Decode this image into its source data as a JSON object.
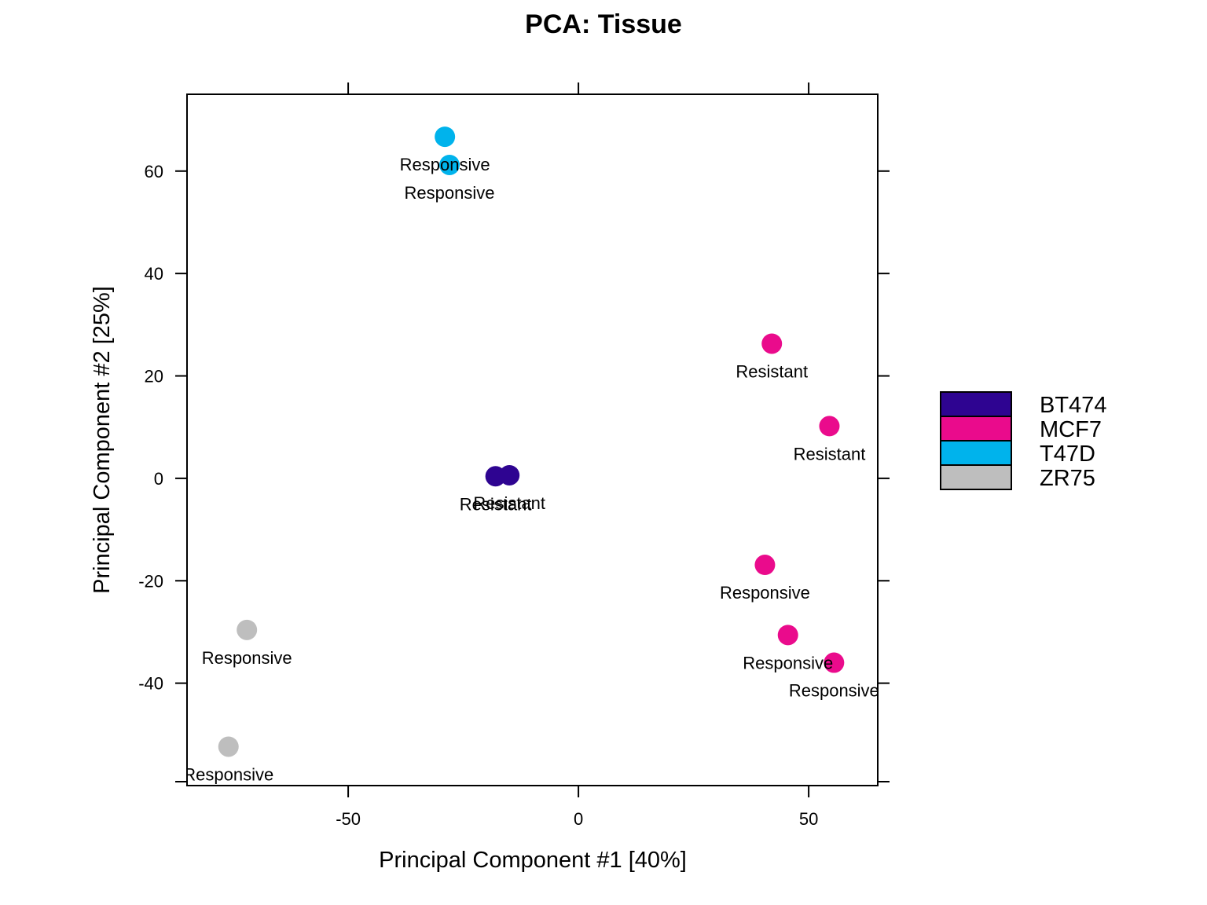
{
  "chart_data": {
    "type": "scatter",
    "title": "PCA: Tissue",
    "xlabel": "Principal Component #1 [40%]",
    "ylabel": "Principal Component #2 [25%]",
    "xlim": [
      -85,
      65
    ],
    "ylim": [
      -60,
      75
    ],
    "xticks": [
      -50,
      0,
      50
    ],
    "yticks": [
      -40,
      -20,
      0,
      20,
      40,
      60
    ],
    "grid": false,
    "legend_position": "right",
    "series": [
      {
        "name": "BT474",
        "color": "#2E0491",
        "points": [
          {
            "x": -18,
            "y": 0.4,
            "label": "Resistant"
          },
          {
            "x": -15,
            "y": 0.6,
            "label": "Resistant"
          }
        ]
      },
      {
        "name": "MCF7",
        "color": "#EA0B8C",
        "points": [
          {
            "x": 42,
            "y": 26.3,
            "label": "Resistant"
          },
          {
            "x": 54.5,
            "y": 10.2,
            "label": "Resistant"
          },
          {
            "x": 40.5,
            "y": -16.9,
            "label": "Responsive"
          },
          {
            "x": 45.5,
            "y": -30.6,
            "label": "Responsive"
          },
          {
            "x": 55.5,
            "y": -36,
            "label": "Responsive"
          }
        ]
      },
      {
        "name": "T47D",
        "color": "#00B3EC",
        "points": [
          {
            "x": -29,
            "y": 66.7,
            "label": "Responsive"
          },
          {
            "x": -28,
            "y": 61.2,
            "label": "Responsive"
          }
        ]
      },
      {
        "name": "ZR75",
        "color": "#BEBEBE",
        "points": [
          {
            "x": -72,
            "y": -29.6,
            "label": "Responsive"
          },
          {
            "x": -76,
            "y": -52.4,
            "label": "Responsive"
          }
        ]
      }
    ]
  }
}
